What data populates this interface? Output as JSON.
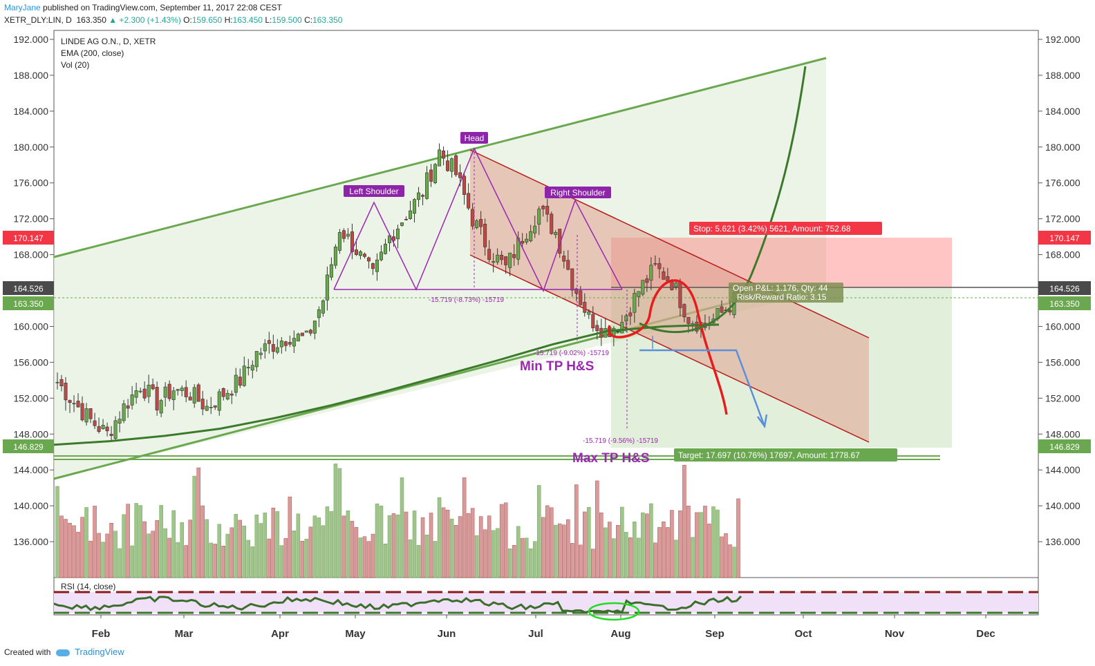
{
  "header": {
    "author": "MaryJane",
    "published": "published on TradingView.com, September 11, 2017 22:08 CEST",
    "symbol": "XETR_DLY:LIN, D",
    "last": "163.350",
    "change": "▲ +2.300 (+1.43%)",
    "ohlc_o": "O:",
    "ohlc_o_val": "159.650",
    "ohlc_h": "H:",
    "ohlc_h_val": "163.450",
    "ohlc_l": "L:",
    "ohlc_l_val": "159.500",
    "ohlc_c": "C:",
    "ohlc_c_val": "163.350"
  },
  "legend": {
    "title": "LINDE AG O.N., D, XETR",
    "ema": "EMA (200, close)",
    "vol": "Vol (20)",
    "rsi": "RSI (14, close)"
  },
  "annotations": {
    "head": "Head",
    "left_shoulder": "Left Shoulder",
    "right_shoulder": "Right Shoulder",
    "min_tp": "Min TP H&S",
    "max_tp": "Max TP H&S",
    "measure1": "-15.719 (-8.73%) -15719",
    "measure2": "-15.719 (-9.02%) -15719",
    "measure3": "-15.719 (-9.56%) -15719",
    "stop": "Stop: 5.621 (3.42%) 5621, Amount: 752.68",
    "open_pl": "Open P&L: 1.176, Qty: 44",
    "rr": "Risk/Reward Ratio: 3.15",
    "target": "Target: 17.697 (10.76%) 17697, Amount: 1778.67"
  },
  "price_badges": {
    "stop": "170.147",
    "entry": "164.526",
    "last": "163.350",
    "target": "146.829"
  },
  "colors": {
    "up": "#26a69a",
    "candle_up": "#6aa84f",
    "candle_down": "#b94a48",
    "channel_green": "#6aa84f",
    "channel_red": "#b71c1c",
    "purple": "#9c27b0",
    "stop_red": "#ff2a2a",
    "badge_dark": "#4a4a4a",
    "target_green": "#6aa84f"
  },
  "footer": {
    "created": "Created with",
    "brand": "TradingView"
  },
  "chart_data": {
    "type": "candlestick",
    "title": "LINDE AG O.N., D, XETR",
    "ylim": [
      132,
      193
    ],
    "y_ticks": [
      "192.000",
      "188.000",
      "184.000",
      "180.000",
      "176.000",
      "172.000",
      "168.000",
      "164.000",
      "160.000",
      "156.000",
      "152.000",
      "148.000",
      "144.000",
      "140.000",
      "136.000"
    ],
    "x_months": [
      "Feb",
      "Mar",
      "Apr",
      "May",
      "Jun",
      "Jul",
      "Aug",
      "Sep",
      "Oct",
      "Nov",
      "Dec"
    ],
    "key_levels": {
      "stop": 170.147,
      "entry": 164.526,
      "last": 163.35,
      "target": 146.829
    },
    "last_ohlc": {
      "o": 159.65,
      "h": 163.45,
      "l": 159.5,
      "c": 163.35,
      "change": 2.3,
      "change_pct": 1.43
    },
    "head_shoulders": {
      "left_shoulder": 174.2,
      "head": 180.1,
      "right_shoulder": 174.3,
      "neckline": 164.4
    },
    "ema200_approx": [
      146.8,
      147.2,
      147.8,
      148.6,
      149.8,
      151.2,
      152.8,
      154.5,
      156.2,
      158.0,
      159.5,
      160.0,
      160.2
    ],
    "close_series_approx": [
      153.8,
      151.5,
      149.5,
      148.0,
      151.0,
      153.5,
      151.5,
      153.0,
      152.5,
      151.0,
      152.5,
      154.0,
      157.0,
      158.0,
      159.0,
      158.5,
      163.0,
      171.0,
      168.5,
      165.5,
      170.0,
      172.5,
      175.0,
      179.5,
      177.0,
      172.0,
      168.5,
      166.5,
      170.0,
      173.0,
      170.5,
      165.0,
      161.0,
      159.5,
      160.5,
      164.0,
      166.5,
      165.0,
      161.0,
      160.0,
      161.5,
      163.35
    ],
    "volume_bars_approx": 200
  }
}
